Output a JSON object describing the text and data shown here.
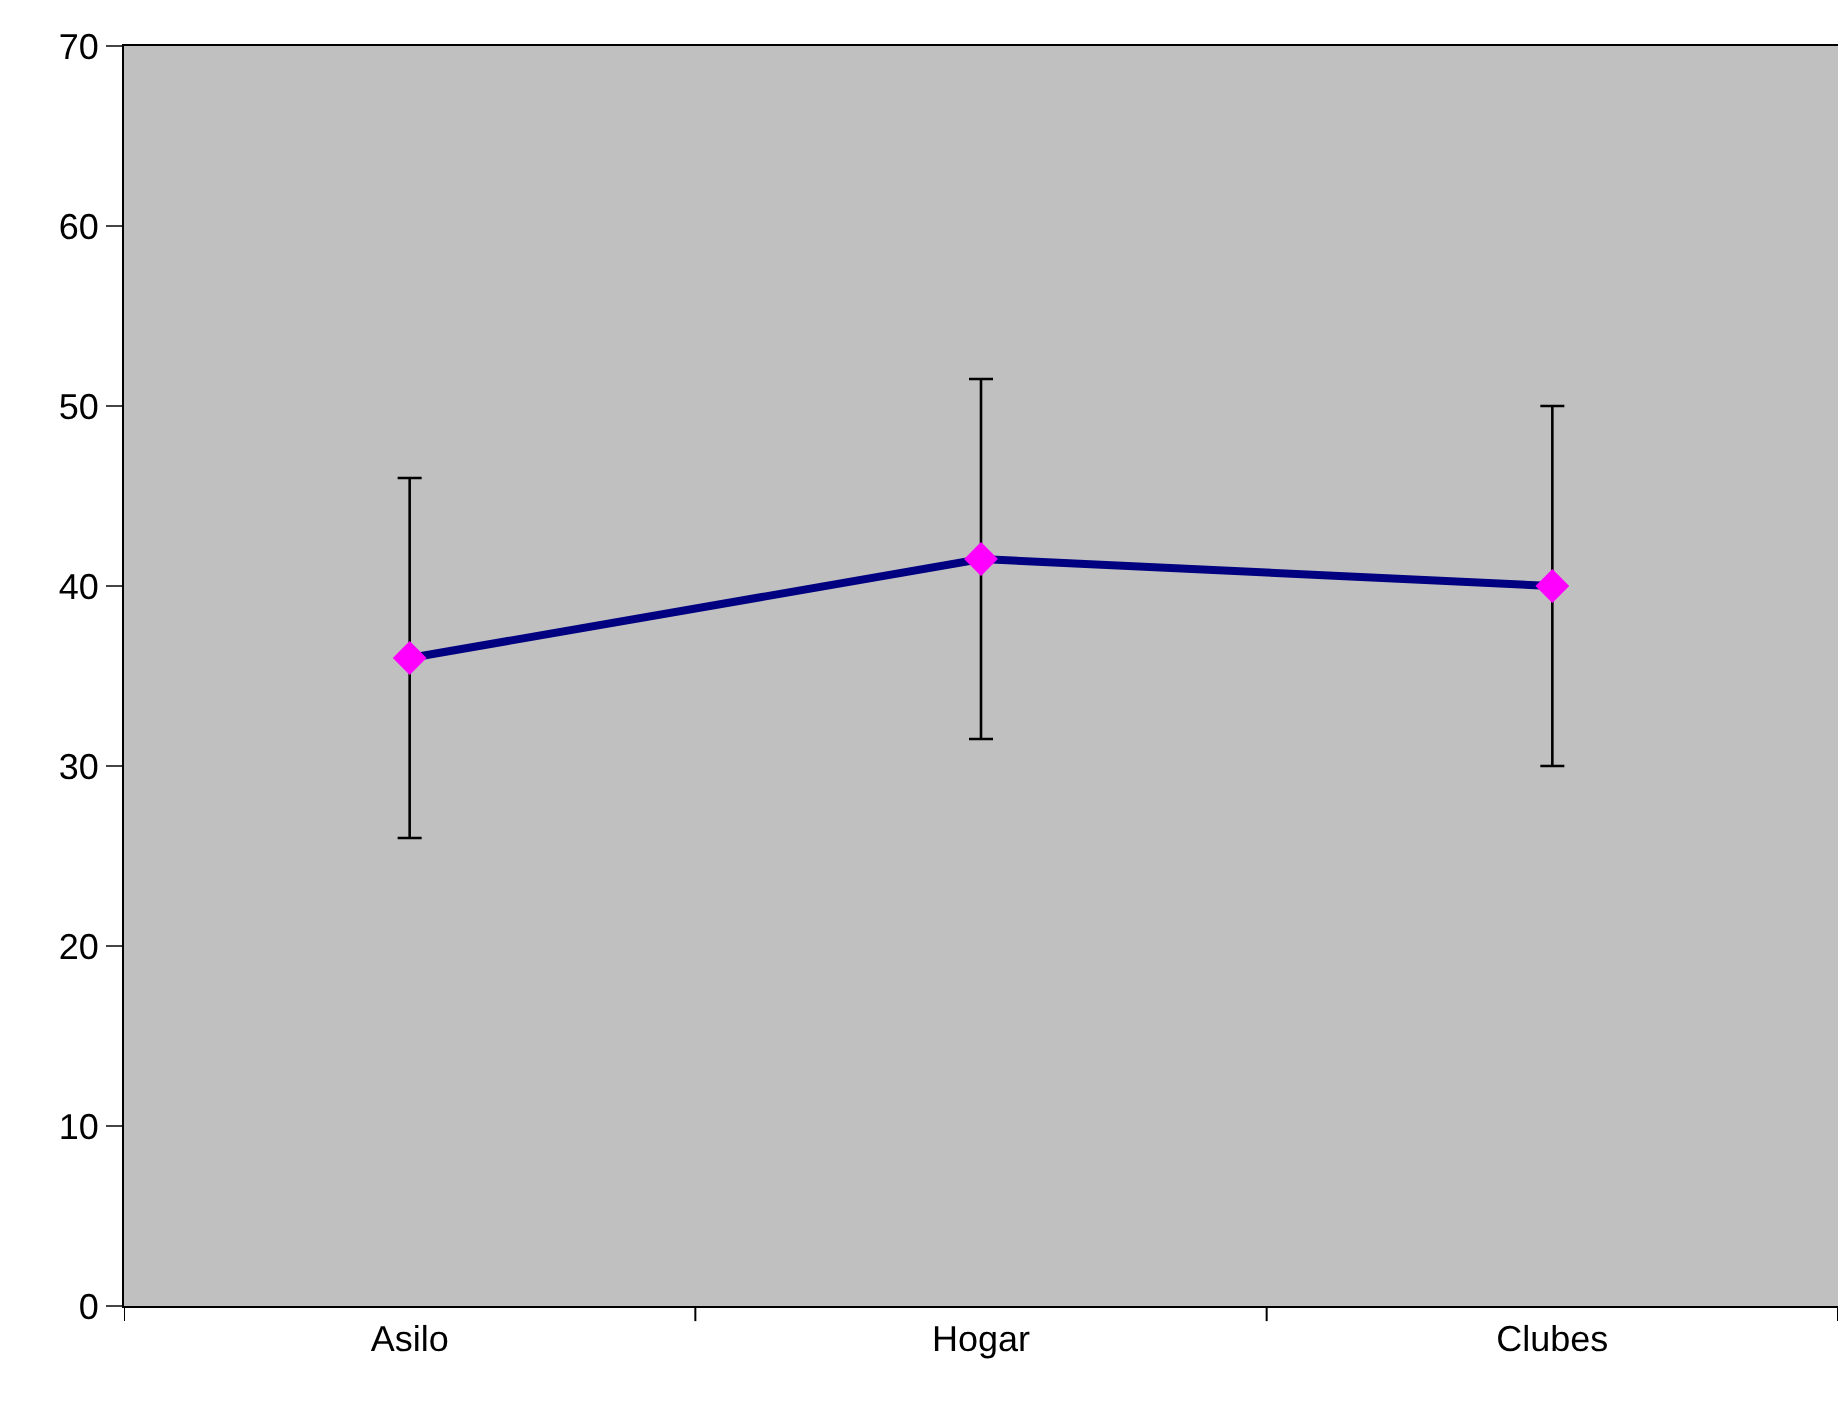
{
  "chart_data": {
    "type": "line",
    "categories": [
      "Asilo",
      "Hogar",
      "Clubes"
    ],
    "series": [
      {
        "color": "#000080",
        "values": [
          36,
          41.5,
          40
        ],
        "errors": [
          10,
          10,
          10
        ]
      }
    ],
    "ylim": [
      0,
      70
    ],
    "yticks": [
      0,
      10,
      20,
      30,
      40,
      50,
      60,
      70
    ],
    "grid": false,
    "legend": false,
    "marker": "diamond",
    "line_style": "solid"
  }
}
